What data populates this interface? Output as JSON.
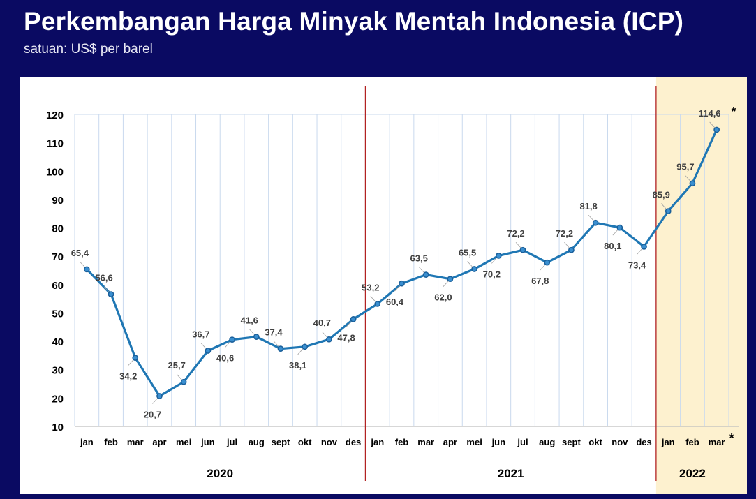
{
  "header": {
    "title": "Perkembangan Harga Minyak Mentah Indonesia (ICP)",
    "subtitle": "satuan: US$ per barel"
  },
  "colors": {
    "background": "#0a0a62",
    "line": "#1f77b4",
    "divider": "#b22222",
    "highlight_2022": "#fdf1cf",
    "gridline": "#c9d9ee",
    "label_text": "#404040"
  },
  "chart_data": {
    "type": "line",
    "title": "Perkembangan Harga Minyak Mentah Indonesia (ICP)",
    "ylabel": "US$ per barel",
    "xlabel": "",
    "ylim": [
      10,
      120
    ],
    "yticks": [
      "10",
      "20",
      "30",
      "40",
      "50",
      "60",
      "70",
      "80",
      "90",
      "100",
      "110",
      "120"
    ],
    "categories": [
      "jan",
      "feb",
      "mar",
      "apr",
      "mei",
      "jun",
      "jul",
      "aug",
      "sept",
      "okt",
      "nov",
      "des",
      "jan",
      "feb",
      "mar",
      "apr",
      "mei",
      "jun",
      "jul",
      "aug",
      "sept",
      "okt",
      "nov",
      "des",
      "jan",
      "feb",
      "mar"
    ],
    "values": [
      65.4,
      56.6,
      34.2,
      20.7,
      25.7,
      36.7,
      40.6,
      41.6,
      37.4,
      38.1,
      40.7,
      47.8,
      53.2,
      60.4,
      63.5,
      62.0,
      65.5,
      70.2,
      72.2,
      67.8,
      72.2,
      81.8,
      80.1,
      73.4,
      85.9,
      95.7,
      114.6
    ],
    "data_labels": [
      "65,4",
      "56,6",
      "34,2",
      "20,7",
      "25,7",
      "36,7",
      "40,6",
      "41,6",
      "37,4",
      "38,1",
      "40,7",
      "47,8",
      "53,2",
      "60,4",
      "63,5",
      "62,0",
      "65,5",
      "70,2",
      "72,2",
      "67,8",
      "72,2",
      "81,8",
      "80,1",
      "73,4",
      "85,9",
      "95,7",
      "114,6"
    ],
    "label_side": [
      "above",
      "above",
      "below",
      "below",
      "above",
      "above",
      "below",
      "above",
      "above",
      "below",
      "above",
      "below",
      "above",
      "below",
      "above",
      "below",
      "above",
      "below",
      "above",
      "below",
      "above",
      "above",
      "below",
      "below",
      "above",
      "above",
      "above"
    ],
    "years": [
      {
        "label": "2020",
        "start": 0,
        "end": 11
      },
      {
        "label": "2021",
        "start": 12,
        "end": 23
      },
      {
        "label": "2022",
        "start": 24,
        "end": 26
      }
    ],
    "highlight_year": "2022",
    "preliminary_mark": "*",
    "preliminary_index": 26,
    "series": [
      {
        "name": "ICP"
      }
    ]
  }
}
